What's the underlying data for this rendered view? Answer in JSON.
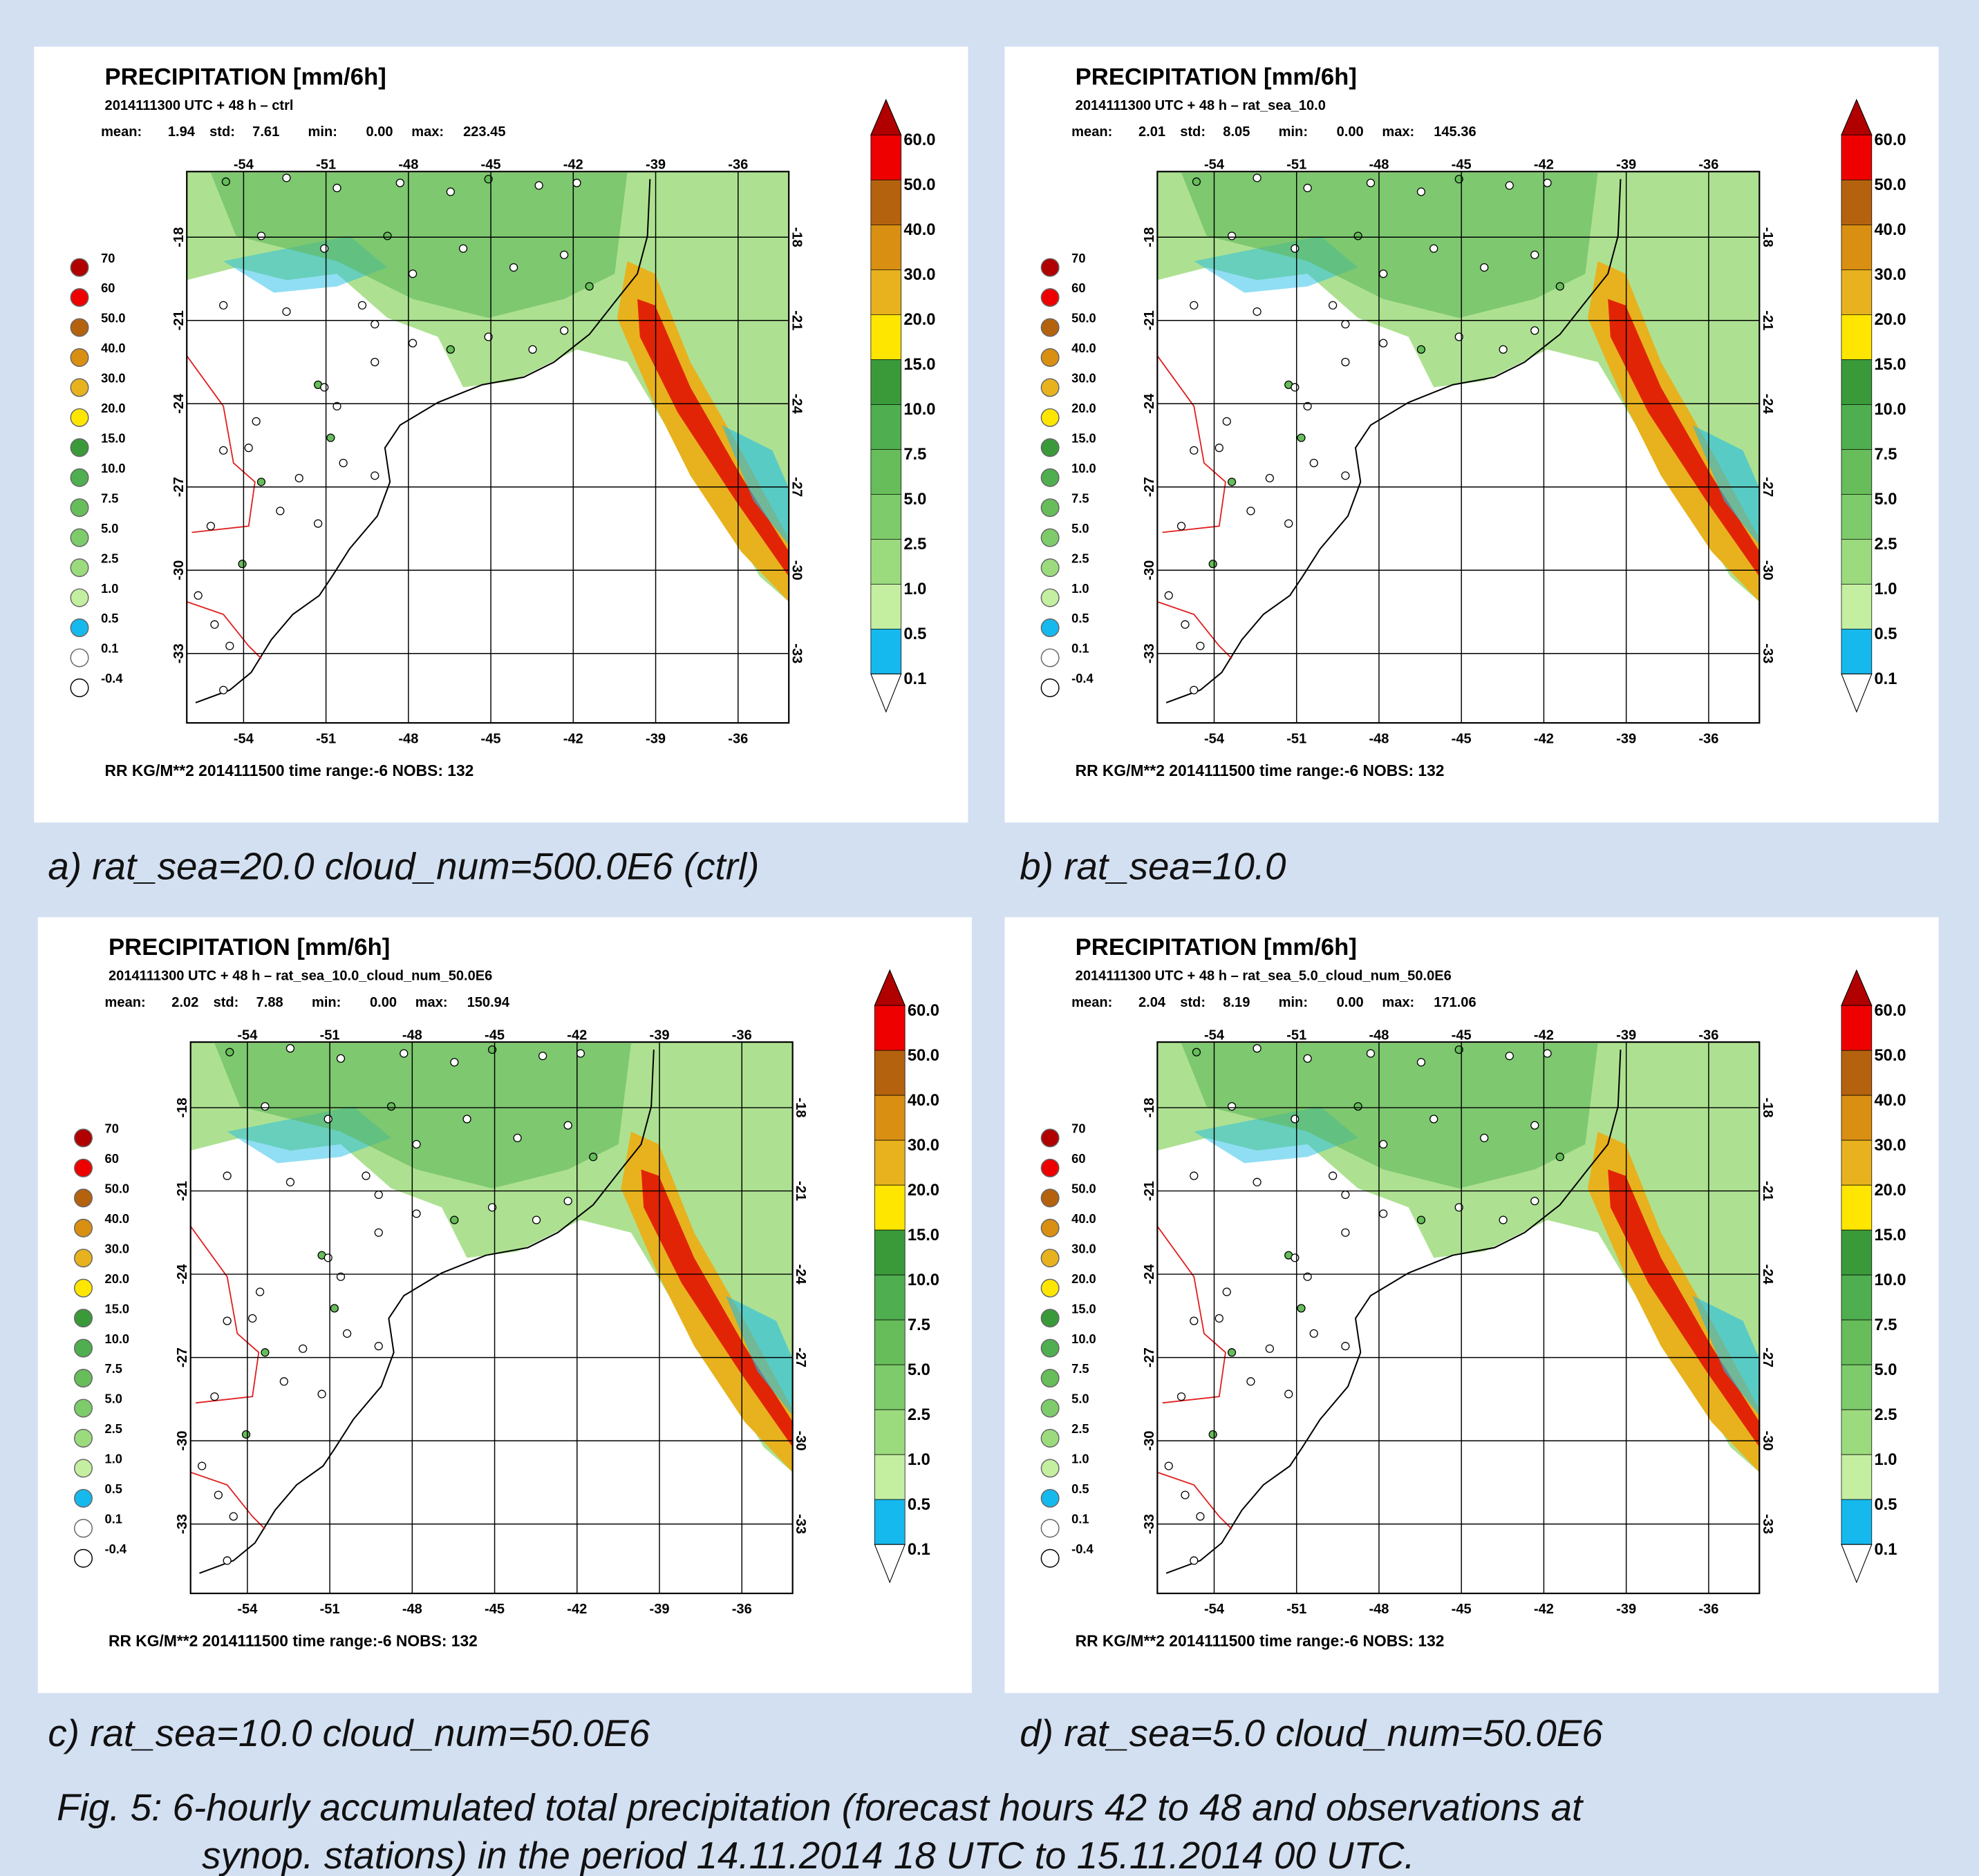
{
  "panels": [
    {
      "title": "PRECIPITATION [mm/6h]",
      "subtitle": "2014111300 UTC + 48 h – ctrl",
      "stats": [
        "mean:",
        "1.94",
        "std:",
        "7.61",
        "min:",
        "0.00",
        "max:",
        "223.45"
      ],
      "footer": "RR KG/M**2  2014111500   time range:-6 NOBS:  132",
      "caption": "a) rat_sea=20.0  cloud_num=500.0E6 (ctrl)"
    },
    {
      "title": "PRECIPITATION [mm/6h]",
      "subtitle": "2014111300 UTC + 48 h – rat_sea_10.0",
      "stats": [
        "mean:",
        "2.01",
        "std:",
        "8.05",
        "min:",
        "0.00",
        "max:",
        "145.36"
      ],
      "footer": "RR KG/M**2  2014111500   time range:-6 NOBS:  132",
      "caption": "b) rat_sea=10.0"
    },
    {
      "title": "PRECIPITATION [mm/6h]",
      "subtitle": "2014111300 UTC + 48 h – rat_sea_10.0_cloud_num_50.0E6",
      "stats": [
        "mean:",
        "2.02",
        "std:",
        "7.88",
        "min:",
        "0.00",
        "max:",
        "150.94"
      ],
      "footer": "RR KG/M**2  2014111500   time range:-6 NOBS:  132",
      "caption": "c) rat_sea=10.0  cloud_num=50.0E6"
    },
    {
      "title": "PRECIPITATION [mm/6h]",
      "subtitle": "2014111300 UTC + 48 h – rat_sea_5.0_cloud_num_50.0E6",
      "stats": [
        "mean:",
        "2.04",
        "std:",
        "8.19",
        "min:",
        "0.00",
        "max:",
        "171.06"
      ],
      "footer": "RR KG/M**2  2014111500   time range:-6 NOBS:  132",
      "caption": "d) rat_sea=5.0  cloud_num=50.0E6"
    }
  ],
  "lon_ticks": [
    -54,
    -51,
    -48,
    -45,
    -42,
    -39,
    -36
  ],
  "lat_ticks": [
    -18,
    -21,
    -24,
    -27,
    -30,
    -33
  ],
  "station_legend": [
    "70",
    "60",
    "50.0",
    "40.0",
    "30.0",
    "20.0",
    "15.0",
    "10.0",
    "7.5",
    "5.0",
    "2.5",
    "1.0",
    "0.5",
    "0.1",
    "-0.4"
  ],
  "colorbar": [
    "60.0",
    "50.0",
    "40.0",
    "30.0",
    "20.0",
    "15.0",
    "10.0",
    "7.5",
    "5.0",
    "2.5",
    "1.0",
    "0.5",
    "0.1"
  ],
  "figure_caption": [
    "Fig. 5:  6-hourly accumulated total precipitation (forecast hours 42 to 48 and observations at",
    "synop. stations) in the period 14.11.2014 18 UTC to 15.11.2014 00 UTC."
  ]
}
